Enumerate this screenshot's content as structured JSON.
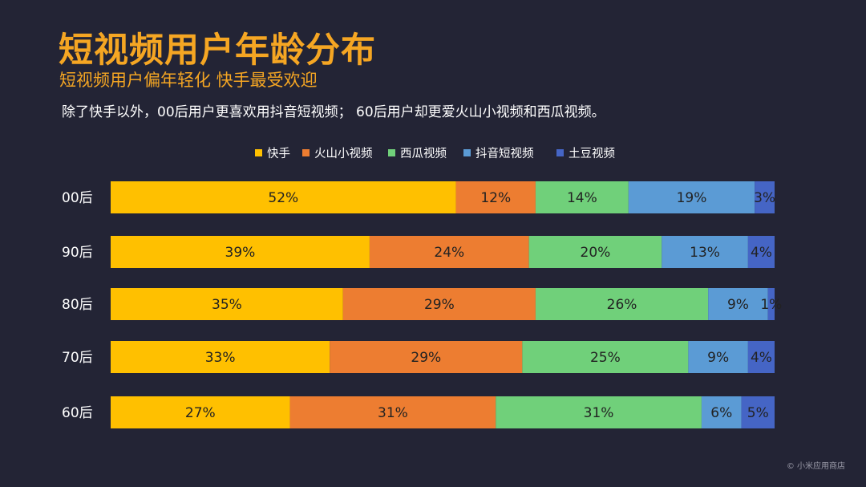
{
  "title": "短视频用户年龄分布",
  "subtitle": "短视频用户偏年轻化  快手最受欢迎",
  "description": "除了快手以外，00后用户更喜欢用抖音短视频；  60后用户却更爱火山小视频和西瓜视频。",
  "footer": "© 小米应用商店",
  "legend": [
    {
      "label": "快手",
      "color": "#ffc000"
    },
    {
      "label": "火山小视频",
      "color": "#ed7d31"
    },
    {
      "label": "西瓜视频",
      "color": "#70d07a"
    },
    {
      "label": "抖音短视频",
      "color": "#5b9bd5"
    },
    {
      "label": "土豆视频",
      "color": "#4565c5"
    }
  ],
  "chart_data": {
    "type": "bar",
    "orientation": "horizontal",
    "stacked": true,
    "categories": [
      "00后",
      "90后",
      "80后",
      "70后",
      "60后"
    ],
    "series": [
      {
        "name": "快手",
        "color": "#ffc000",
        "values": [
          52,
          39,
          35,
          33,
          27
        ]
      },
      {
        "name": "火山小视频",
        "color": "#ed7d31",
        "values": [
          12,
          24,
          29,
          29,
          31
        ]
      },
      {
        "name": "西瓜视频",
        "color": "#70d07a",
        "values": [
          14,
          20,
          26,
          25,
          31
        ]
      },
      {
        "name": "抖音短视频",
        "color": "#5b9bd5",
        "values": [
          19,
          13,
          9,
          9,
          6
        ]
      },
      {
        "name": "土豆视频",
        "color": "#4565c5",
        "values": [
          3,
          4,
          1,
          4,
          5
        ]
      }
    ],
    "value_unit": "%",
    "legend_position": "top",
    "grid": false
  }
}
